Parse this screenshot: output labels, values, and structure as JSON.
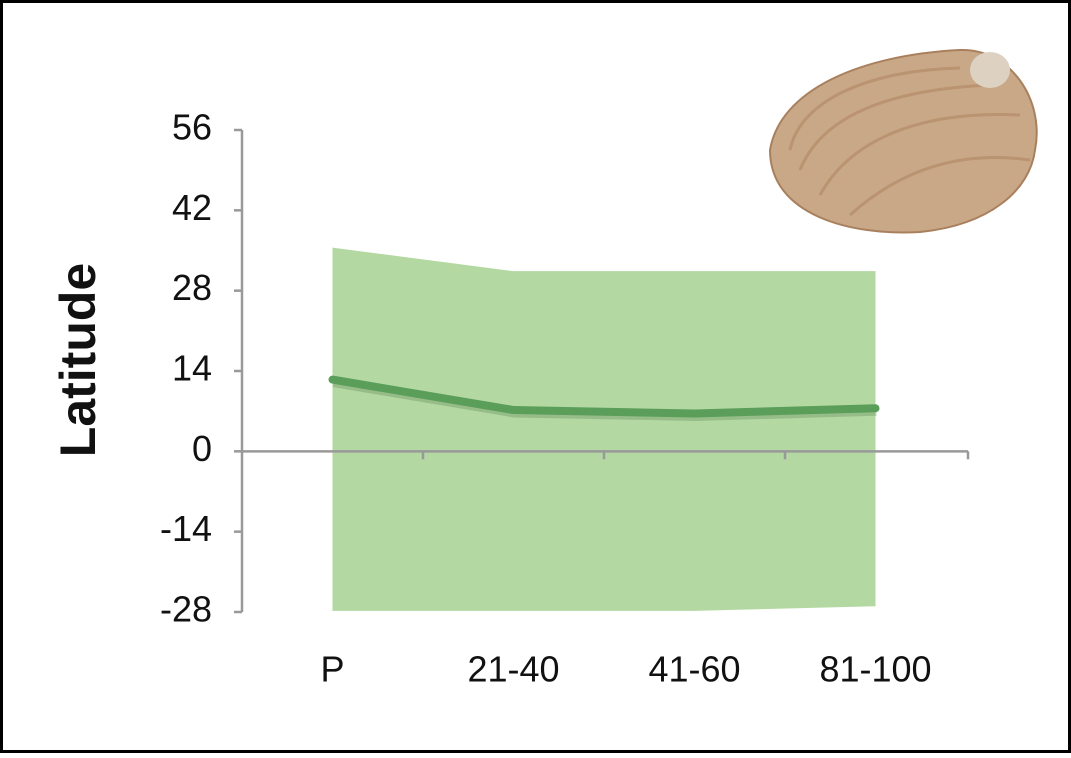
{
  "chart_data": {
    "type": "line-range",
    "y_label": "Latitude",
    "categories": [
      "P",
      "21-40",
      "41-60",
      "81-100"
    ],
    "values": [
      12.5,
      7.2,
      6.6,
      7.5
    ],
    "range_high": [
      35.5,
      31.4,
      31.4,
      31.4
    ],
    "range_low": [
      -27.8,
      -27.8,
      -27.8,
      -27
    ],
    "line_color": "#5a9e5a",
    "range_color": "#b4d8a2",
    "ylim": [
      -28,
      56
    ],
    "yticks": [
      -28,
      -14,
      0,
      14,
      28,
      42,
      56
    ]
  }
}
